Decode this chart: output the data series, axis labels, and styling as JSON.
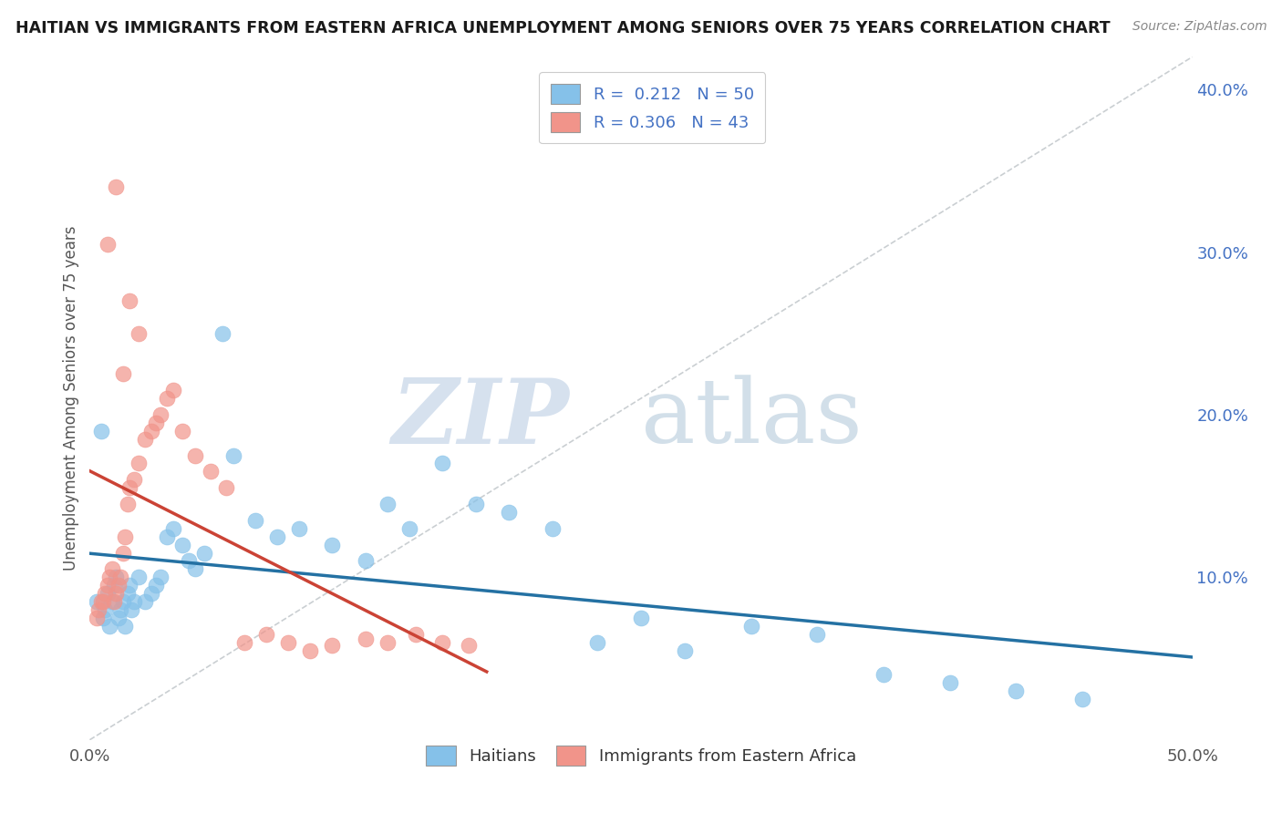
{
  "title": "HAITIAN VS IMMIGRANTS FROM EASTERN AFRICA UNEMPLOYMENT AMONG SENIORS OVER 75 YEARS CORRELATION CHART",
  "source_text": "Source: ZipAtlas.com",
  "ylabel": "Unemployment Among Seniors over 75 years",
  "xlim": [
    0.0,
    0.5
  ],
  "ylim": [
    0.0,
    0.42
  ],
  "yticks_right": [
    0.1,
    0.2,
    0.3,
    0.4
  ],
  "ytick_right_labels": [
    "10.0%",
    "20.0%",
    "30.0%",
    "40.0%"
  ],
  "blue_color": "#85c1e9",
  "pink_color": "#f1948a",
  "blue_line_color": "#2471a3",
  "pink_line_color": "#cb4335",
  "diag_line_color": "#bdc3c7",
  "grid_color": "#d5d8dc",
  "background_color": "#ffffff",
  "haitians_x": [
    0.003,
    0.005,
    0.006,
    0.007,
    0.008,
    0.009,
    0.01,
    0.011,
    0.012,
    0.013,
    0.014,
    0.015,
    0.016,
    0.017,
    0.018,
    0.019,
    0.02,
    0.022,
    0.025,
    0.028,
    0.03,
    0.032,
    0.035,
    0.038,
    0.042,
    0.045,
    0.048,
    0.052,
    0.06,
    0.065,
    0.075,
    0.085,
    0.095,
    0.11,
    0.125,
    0.135,
    0.145,
    0.16,
    0.175,
    0.19,
    0.21,
    0.23,
    0.25,
    0.27,
    0.3,
    0.33,
    0.36,
    0.39,
    0.42,
    0.45
  ],
  "haitians_y": [
    0.085,
    0.19,
    0.075,
    0.08,
    0.09,
    0.07,
    0.085,
    0.095,
    0.1,
    0.075,
    0.08,
    0.085,
    0.07,
    0.09,
    0.095,
    0.08,
    0.085,
    0.1,
    0.085,
    0.09,
    0.095,
    0.1,
    0.125,
    0.13,
    0.12,
    0.11,
    0.105,
    0.115,
    0.25,
    0.175,
    0.135,
    0.125,
    0.13,
    0.12,
    0.11,
    0.145,
    0.13,
    0.17,
    0.145,
    0.14,
    0.13,
    0.06,
    0.075,
    0.055,
    0.07,
    0.065,
    0.04,
    0.035,
    0.03,
    0.025
  ],
  "eastern_africa_x": [
    0.003,
    0.004,
    0.005,
    0.006,
    0.007,
    0.008,
    0.009,
    0.01,
    0.011,
    0.012,
    0.013,
    0.014,
    0.015,
    0.016,
    0.017,
    0.018,
    0.02,
    0.022,
    0.025,
    0.028,
    0.03,
    0.032,
    0.035,
    0.038,
    0.042,
    0.048,
    0.055,
    0.062,
    0.07,
    0.08,
    0.09,
    0.1,
    0.11,
    0.125,
    0.135,
    0.148,
    0.16,
    0.172,
    0.018,
    0.022,
    0.012,
    0.008,
    0.015
  ],
  "eastern_africa_y": [
    0.075,
    0.08,
    0.085,
    0.085,
    0.09,
    0.095,
    0.1,
    0.105,
    0.085,
    0.09,
    0.095,
    0.1,
    0.115,
    0.125,
    0.145,
    0.155,
    0.16,
    0.17,
    0.185,
    0.19,
    0.195,
    0.2,
    0.21,
    0.215,
    0.19,
    0.175,
    0.165,
    0.155,
    0.06,
    0.065,
    0.06,
    0.055,
    0.058,
    0.062,
    0.06,
    0.065,
    0.06,
    0.058,
    0.27,
    0.25,
    0.34,
    0.305,
    0.225
  ],
  "R_blue": 0.212,
  "N_blue": 50,
  "R_pink": 0.306,
  "N_pink": 43
}
